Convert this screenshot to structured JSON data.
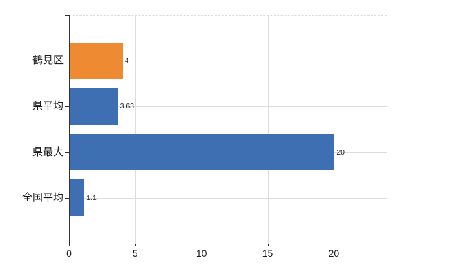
{
  "chart_data": {
    "type": "bar",
    "orientation": "horizontal",
    "title": "",
    "categories": [
      "鶴見区",
      "県平均",
      "県最大",
      "全国平均"
    ],
    "values": [
      4,
      3.63,
      20,
      1.1
    ],
    "value_labels": [
      "4",
      "3.63",
      "20",
      "1.1"
    ],
    "series_colors": [
      "#EE8B32",
      "#3E6FB2",
      "#3E6FB2",
      "#3E6FB2"
    ],
    "x_ticks": [
      0,
      5,
      10,
      15,
      20
    ],
    "x_tick_labels": [
      "0",
      "5",
      "10",
      "15",
      "20"
    ],
    "xlim": [
      0,
      24
    ],
    "grid": true,
    "legend": false,
    "axis_color": "#333333",
    "grid_color": "#dcdcdc",
    "label_color": "#1a1a1a"
  }
}
